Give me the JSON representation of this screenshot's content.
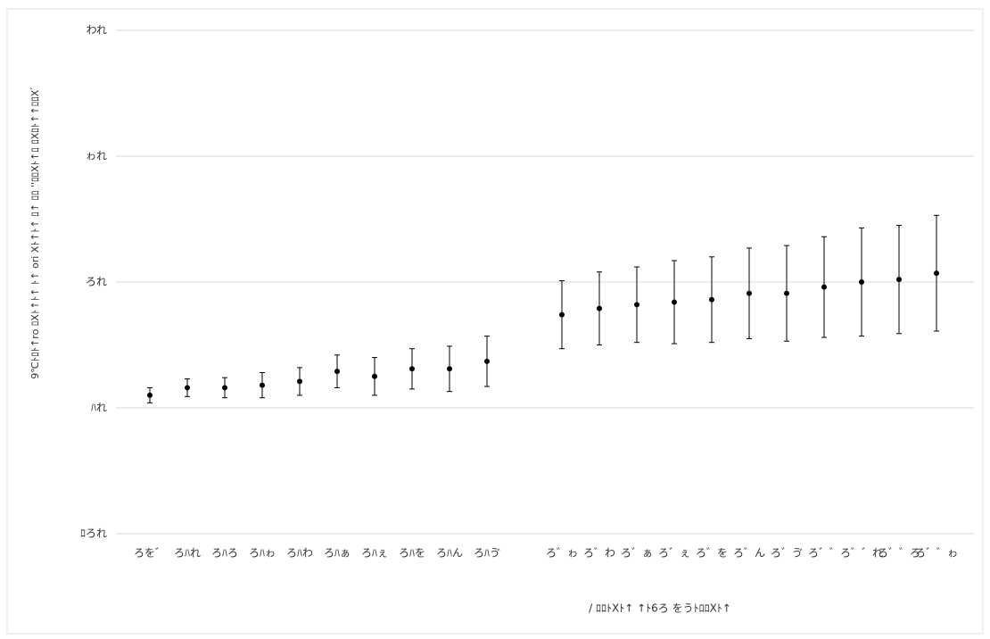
{
  "chart_data": {
    "type": "errorbar",
    "x_label": "/ ﾛﾛﾄXﾄ↑ ↑ﾄ6ろ をうﾄﾛﾛXﾄ↑",
    "y_label": "9℃ﾄﾛﾄ↑ro ﾛXﾄ↑ﾄ↑ ﾄ↑ ori Xﾄ↑ﾄ↑ ﾛ↑ ﾛﾛ ''ﾛﾛXﾄ↑ﾛ ﾛXﾛﾄ↑↑ﾛﾛXﾞ",
    "categories": [
      "ろを゛",
      "ろﾊれ",
      "ろﾊろ",
      "ろﾊゎ",
      "ろﾊわ",
      "ろﾊぁ",
      "ろﾊぇ",
      "ろﾊを",
      "ろﾊん",
      "ろﾊゔ",
      null,
      "ろ゛ゎ",
      "ろ゛わ",
      "ろ゛ぁ",
      "ろ゛ぇ",
      "ろ゛を",
      "ろ゛ん",
      "ろ゛ゔ",
      "ろ゛゛",
      "ろ゛゛れ",
      "ろ゛゛ろ",
      "ろ゛゛ゎ"
    ],
    "values": [
      11.0,
      11.6,
      11.6,
      11.8,
      12.1,
      12.9,
      12.5,
      13.1,
      13.1,
      13.7,
      null,
      17.4,
      17.9,
      18.2,
      18.4,
      18.6,
      19.1,
      19.1,
      19.6,
      20.0,
      20.2,
      20.7
    ],
    "errors": [
      0.6,
      0.7,
      0.8,
      1.0,
      1.1,
      1.3,
      1.5,
      1.6,
      1.8,
      2.0,
      null,
      2.7,
      2.9,
      3.0,
      3.3,
      3.4,
      3.6,
      3.8,
      4.0,
      4.3,
      4.3,
      4.6
    ],
    "color": "#000000",
    "ylim": [
      0,
      40
    ],
    "yticks": [
      {
        "value": 0,
        "label": "ﾛろれ"
      },
      {
        "value": 10,
        "label": "ﾊれ"
      },
      {
        "value": 20,
        "label": "ろれ"
      },
      {
        "value": 30,
        "label": "ゎれ"
      },
      {
        "value": 40,
        "label": "われ"
      }
    ],
    "grid": true
  }
}
